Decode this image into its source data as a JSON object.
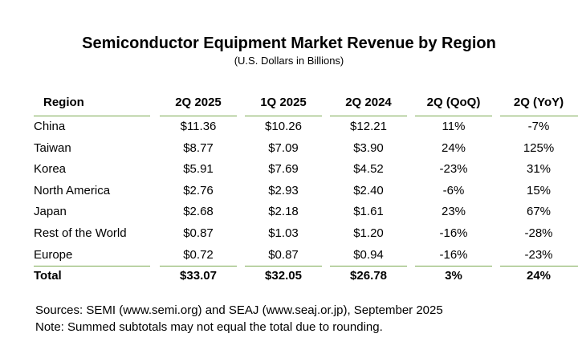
{
  "title": "Semiconductor Equipment Market Revenue by Region",
  "subtitle": "(U.S. Dollars in Billions)",
  "table": {
    "headers": [
      "Region",
      "2Q 2025",
      "1Q 2025",
      "2Q 2024",
      "2Q (QoQ)",
      "2Q (YoY)"
    ],
    "rows": [
      [
        "China",
        "$11.36",
        "$10.26",
        "$12.21",
        "11%",
        "-7%"
      ],
      [
        "Taiwan",
        "$8.77",
        "$7.09",
        "$3.90",
        "24%",
        "125%"
      ],
      [
        "Korea",
        "$5.91",
        "$7.69",
        "$4.52",
        "-23%",
        "31%"
      ],
      [
        "North America",
        "$2.76",
        "$2.93",
        "$2.40",
        "-6%",
        "15%"
      ],
      [
        "Japan",
        "$2.68",
        "$2.18",
        "$1.61",
        "23%",
        "67%"
      ],
      [
        "Rest of the World",
        "$0.87",
        "$1.03",
        "$1.20",
        "-16%",
        "-28%"
      ],
      [
        "Europe",
        "$0.72",
        "$0.87",
        "$0.94",
        "-16%",
        "-23%"
      ]
    ],
    "total": [
      "Total",
      "$33.07",
      "$32.05",
      "$26.78",
      "3%",
      "24%"
    ]
  },
  "notes": {
    "sources": "Sources: SEMI (www.semi.org) and SEAJ (www.seaj.or.jp), September 2025",
    "note": "Note: Summed subtotals may not equal the total due to rounding."
  },
  "colors": {
    "rule": "#7aa84f"
  }
}
